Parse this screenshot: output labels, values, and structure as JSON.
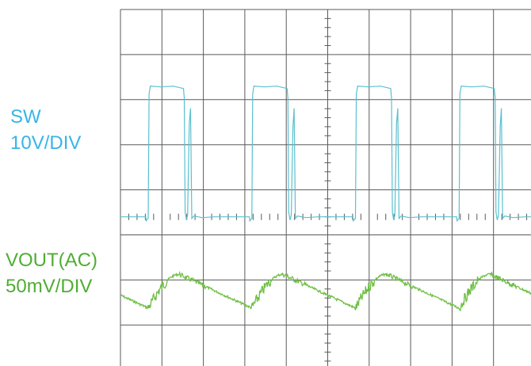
{
  "chart_data": {
    "type": "line",
    "title": "",
    "grid": true,
    "divisions": {
      "horizontal": 10,
      "vertical": 8
    },
    "minor_ticks_per_division": 5,
    "channels": [
      {
        "label_line1": "SW",
        "label_line2": "10V/DIV",
        "color": "#5bc0cf",
        "label_color": "#37b5e6",
        "ground_division": 4.6,
        "waveform": "switch-node",
        "pulse_high_div": 2.9,
        "period_div": 2.5,
        "pulse_starts_div": [
          0.67,
          3.17,
          5.67,
          8.17
        ]
      },
      {
        "label_line1": "VOUT(AC)",
        "label_line2": "50mV/DIV",
        "color": "#6fbf45",
        "label_color": "#4fad33",
        "center_division": 6.25,
        "waveform": "ripple",
        "ripple_pp_div": 0.75,
        "period_div": 2.5,
        "ramp_starts_div": [
          0.67,
          3.17,
          5.67,
          8.17
        ]
      }
    ]
  }
}
